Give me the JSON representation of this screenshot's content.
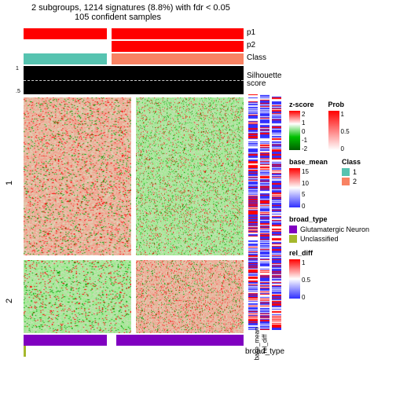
{
  "title": {
    "line1": "2 subgroups, 1214 signatures (8.8%) with fdr < 0.05",
    "line2": "105 confident samples"
  },
  "annotations": {
    "p1_label": "p1",
    "p2_label": "p2",
    "class_label": "Class",
    "silhouette_label": "Silhouette\nscore",
    "broad_type_label": "broad_type",
    "silh_tick_top": "1",
    "silh_tick_bot": ".5"
  },
  "groups": [
    "1",
    "2"
  ],
  "group_split": 0.68,
  "column_split": 0.38,
  "p1_colors": {
    "g1": "#ff0000",
    "g2": "#ff0000"
  },
  "p2_colors": {
    "g1": "#ffffff",
    "g2": "#ff0000"
  },
  "class_colors": {
    "g1": "#56c3b0",
    "g2": "#f88263"
  },
  "broad_type": {
    "g1": "#8000c0",
    "g2": "#8000c0",
    "edge": "#a5b82d"
  },
  "heatmap": {
    "bg": "#f8f8f0",
    "red": "#ff0000",
    "green": "#00c000",
    "seed": 42
  },
  "side": {
    "base_mean_label": "base_mean",
    "rel_diff_label": "rel_diff",
    "red": "#ff0000",
    "white": "#ffffff",
    "blue": "#3030ff"
  },
  "legends": {
    "zscore": {
      "title": "z-score",
      "stops": [
        "#ff0000",
        "#ffffff",
        "#00c000",
        "#006000"
      ],
      "ticks": [
        "2",
        "1",
        "0",
        "-1",
        "-2"
      ]
    },
    "base_mean": {
      "title": "base_mean",
      "stops": [
        "#ff0000",
        "#ffffff",
        "#3030ff"
      ],
      "ticks": [
        "15",
        "10",
        "5",
        "0"
      ]
    },
    "rel_diff": {
      "title": "rel_diff",
      "stops": [
        "#ff0000",
        "#ffffff",
        "#3030ff"
      ],
      "ticks": [
        "1",
        "0.5",
        "0"
      ]
    },
    "prob": {
      "title": "Prob",
      "stops": [
        "#ff0000",
        "#ffffff"
      ],
      "ticks": [
        "1",
        "0.5",
        "0"
      ]
    },
    "class": {
      "title": "Class",
      "items": [
        {
          "c": "#56c3b0",
          "l": "1"
        },
        {
          "c": "#f88263",
          "l": "2"
        }
      ]
    },
    "broad_type": {
      "title": "broad_type",
      "items": [
        {
          "c": "#8000c0",
          "l": "Glutamatergic Neuron"
        },
        {
          "c": "#a5b82d",
          "l": "Unclassified"
        }
      ]
    }
  }
}
